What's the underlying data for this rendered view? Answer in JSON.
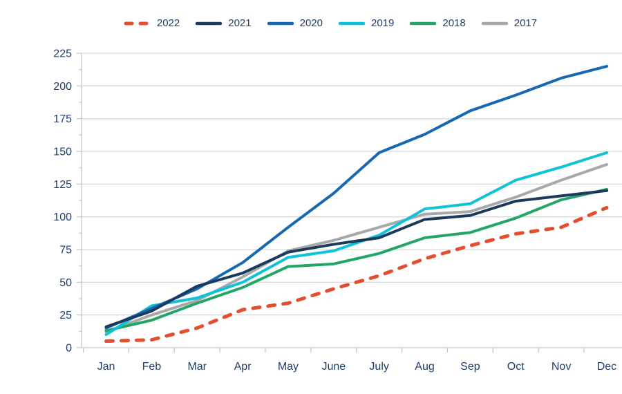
{
  "chart_data": {
    "type": "line",
    "title": "",
    "xlabel": "",
    "ylabel": "",
    "categories": [
      "Jan",
      "Feb",
      "Mar",
      "Apr",
      "May",
      "June",
      "July",
      "Aug",
      "Sep",
      "Oct",
      "Nov",
      "Dec"
    ],
    "series": [
      {
        "name": "2022",
        "color": "#e44d2e",
        "line_style": "dashed",
        "values": [
          5,
          6,
          15,
          29,
          34,
          45,
          55,
          68,
          78,
          87,
          92,
          107
        ]
      },
      {
        "name": "2021",
        "color": "#1b3a5c",
        "line_style": "solid",
        "values": [
          16,
          28,
          47,
          57,
          73,
          79,
          84,
          98,
          101,
          112,
          116,
          120
        ]
      },
      {
        "name": "2020",
        "color": "#1668b3",
        "line_style": "solid",
        "values": [
          15,
          30,
          45,
          65,
          92,
          118,
          149,
          163,
          181,
          193,
          206,
          215
        ]
      },
      {
        "name": "2019",
        "color": "#0fc2d8",
        "line_style": "solid",
        "values": [
          10,
          32,
          38,
          50,
          69,
          74,
          86,
          106,
          110,
          128,
          138,
          149
        ]
      },
      {
        "name": "2018",
        "color": "#22a566",
        "line_style": "solid",
        "values": [
          13,
          21,
          34,
          46,
          62,
          64,
          72,
          84,
          88,
          99,
          113,
          121
        ]
      },
      {
        "name": "2017",
        "color": "#a7a8aa",
        "line_style": "solid",
        "values": [
          12,
          25,
          36,
          54,
          74,
          82,
          92,
          102,
          104,
          115,
          128,
          140
        ]
      }
    ],
    "ylim": [
      0,
      225
    ],
    "yticks": [
      0,
      25,
      50,
      75,
      100,
      125,
      150,
      175,
      200,
      225
    ],
    "y_minor_step": 12.5,
    "grid": true,
    "legend_position": "top"
  },
  "colors": {
    "background": "#ffffff",
    "axis_label": "#1d3d6b",
    "gridline": "#d9dadb",
    "axis_line": "#c5c6c8"
  }
}
